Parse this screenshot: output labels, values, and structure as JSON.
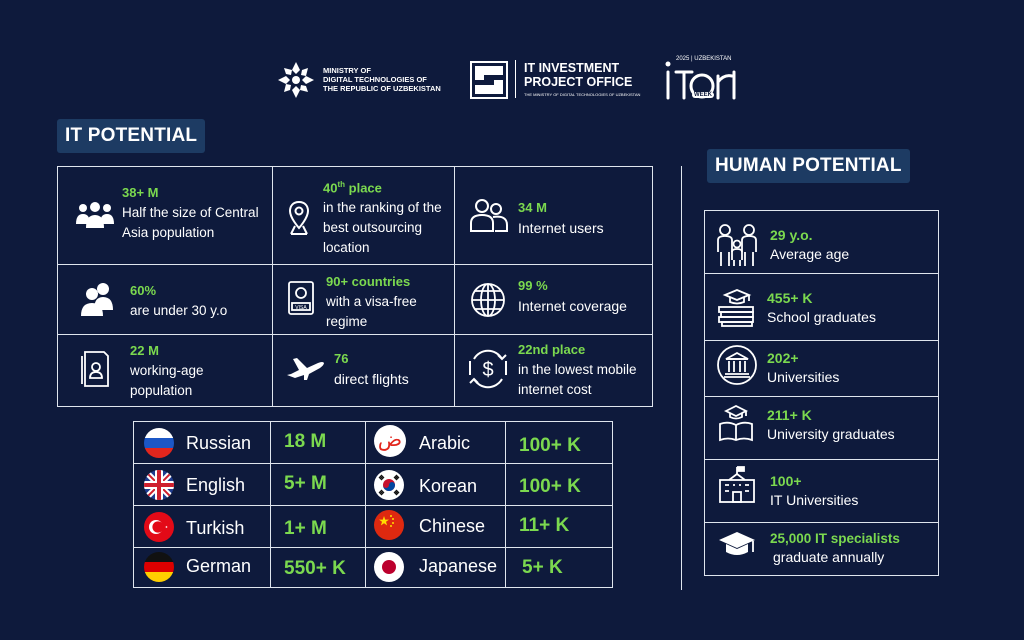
{
  "header": {
    "ministry_lines": [
      "MINISTRY OF",
      "DIGITAL TECHNOLOGIES OF",
      "THE REPUBLIC OF UZBEKISTAN"
    ],
    "itpo_lines": [
      "IT INVESTMENT",
      "PROJECT OFFICE"
    ],
    "itpo_sub": "THE MINISTRY OF DIGITAL TECHNOLOGIES OF UZBEKISTAN",
    "week_top": "2025 | UZBEKISTAN",
    "week_label": "WEEK"
  },
  "it_potential": {
    "title": "IT POTENTIAL",
    "cells": [
      {
        "value": "38+ M",
        "text": [
          "Half the size of Central",
          "Asia population"
        ],
        "icon": "people-group-icon"
      },
      {
        "value": "40",
        "value_sup": "th",
        "value_rest": " place",
        "text": [
          "in the ranking of the",
          "best outsourcing",
          "location"
        ],
        "icon": "location-pin-icon"
      },
      {
        "value": "34 M",
        "text": [
          "Internet users"
        ],
        "icon": "users-icon"
      },
      {
        "value": "60%",
        "text": [
          "are under 30 y.o"
        ],
        "icon": "youth-icon"
      },
      {
        "value": "90+ countries",
        "text": [
          "with a visa-free",
          "regime"
        ],
        "icon": "visa-passport-icon"
      },
      {
        "value": "99 %",
        "text": [
          "Internet coverage"
        ],
        "icon": "globe-icon"
      },
      {
        "value": "22 M",
        "text": [
          "working-age",
          "population"
        ],
        "icon": "id-card-icon"
      },
      {
        "value": "76",
        "text": [
          "direct flights"
        ],
        "icon": "airplane-icon"
      },
      {
        "value": "22nd place",
        "text": [
          "in the lowest mobile",
          "internet cost"
        ],
        "icon": "dollar-exchange-icon"
      }
    ]
  },
  "languages": [
    {
      "name": "Russian",
      "value": "18 M",
      "flag": "russia-flag-icon"
    },
    {
      "name": "Arabic",
      "value": "100+ K",
      "flag": "arabic-letter-icon"
    },
    {
      "name": "English",
      "value": "5+ M",
      "flag": "uk-flag-icon"
    },
    {
      "name": "Korean",
      "value": "100+ K",
      "flag": "korea-flag-icon"
    },
    {
      "name": "Turkish",
      "value": "1+ M",
      "flag": "turkey-flag-icon"
    },
    {
      "name": "Chinese",
      "value": "11+ K",
      "flag": "china-flag-icon"
    },
    {
      "name": "German",
      "value": "550+ K",
      "flag": "germany-flag-icon"
    },
    {
      "name": "Japanese",
      "value": "5+ K",
      "flag": "japan-flag-icon"
    }
  ],
  "human_potential": {
    "title": "HUMAN POTENTIAL",
    "rows": [
      {
        "value": "29 y.o.",
        "text": "Average age",
        "icon": "family-icon"
      },
      {
        "value": "455+ K",
        "text": "School graduates",
        "icon": "books-cap-icon"
      },
      {
        "value": "202+",
        "text": "Universities",
        "icon": "university-building-icon"
      },
      {
        "value": "211+ K",
        "text": "University graduates",
        "icon": "graduation-book-icon"
      },
      {
        "value": "100+",
        "text": "IT Universities",
        "icon": "school-building-icon"
      },
      {
        "value": "25,000 IT specialists",
        "text": "graduate annually",
        "icon": "graduation-cap-icon"
      }
    ]
  },
  "colors": {
    "background": "#0e1a3c",
    "accent_green": "#7bd94f",
    "badge": "#1d3b63",
    "border": "#dfe5ee"
  }
}
